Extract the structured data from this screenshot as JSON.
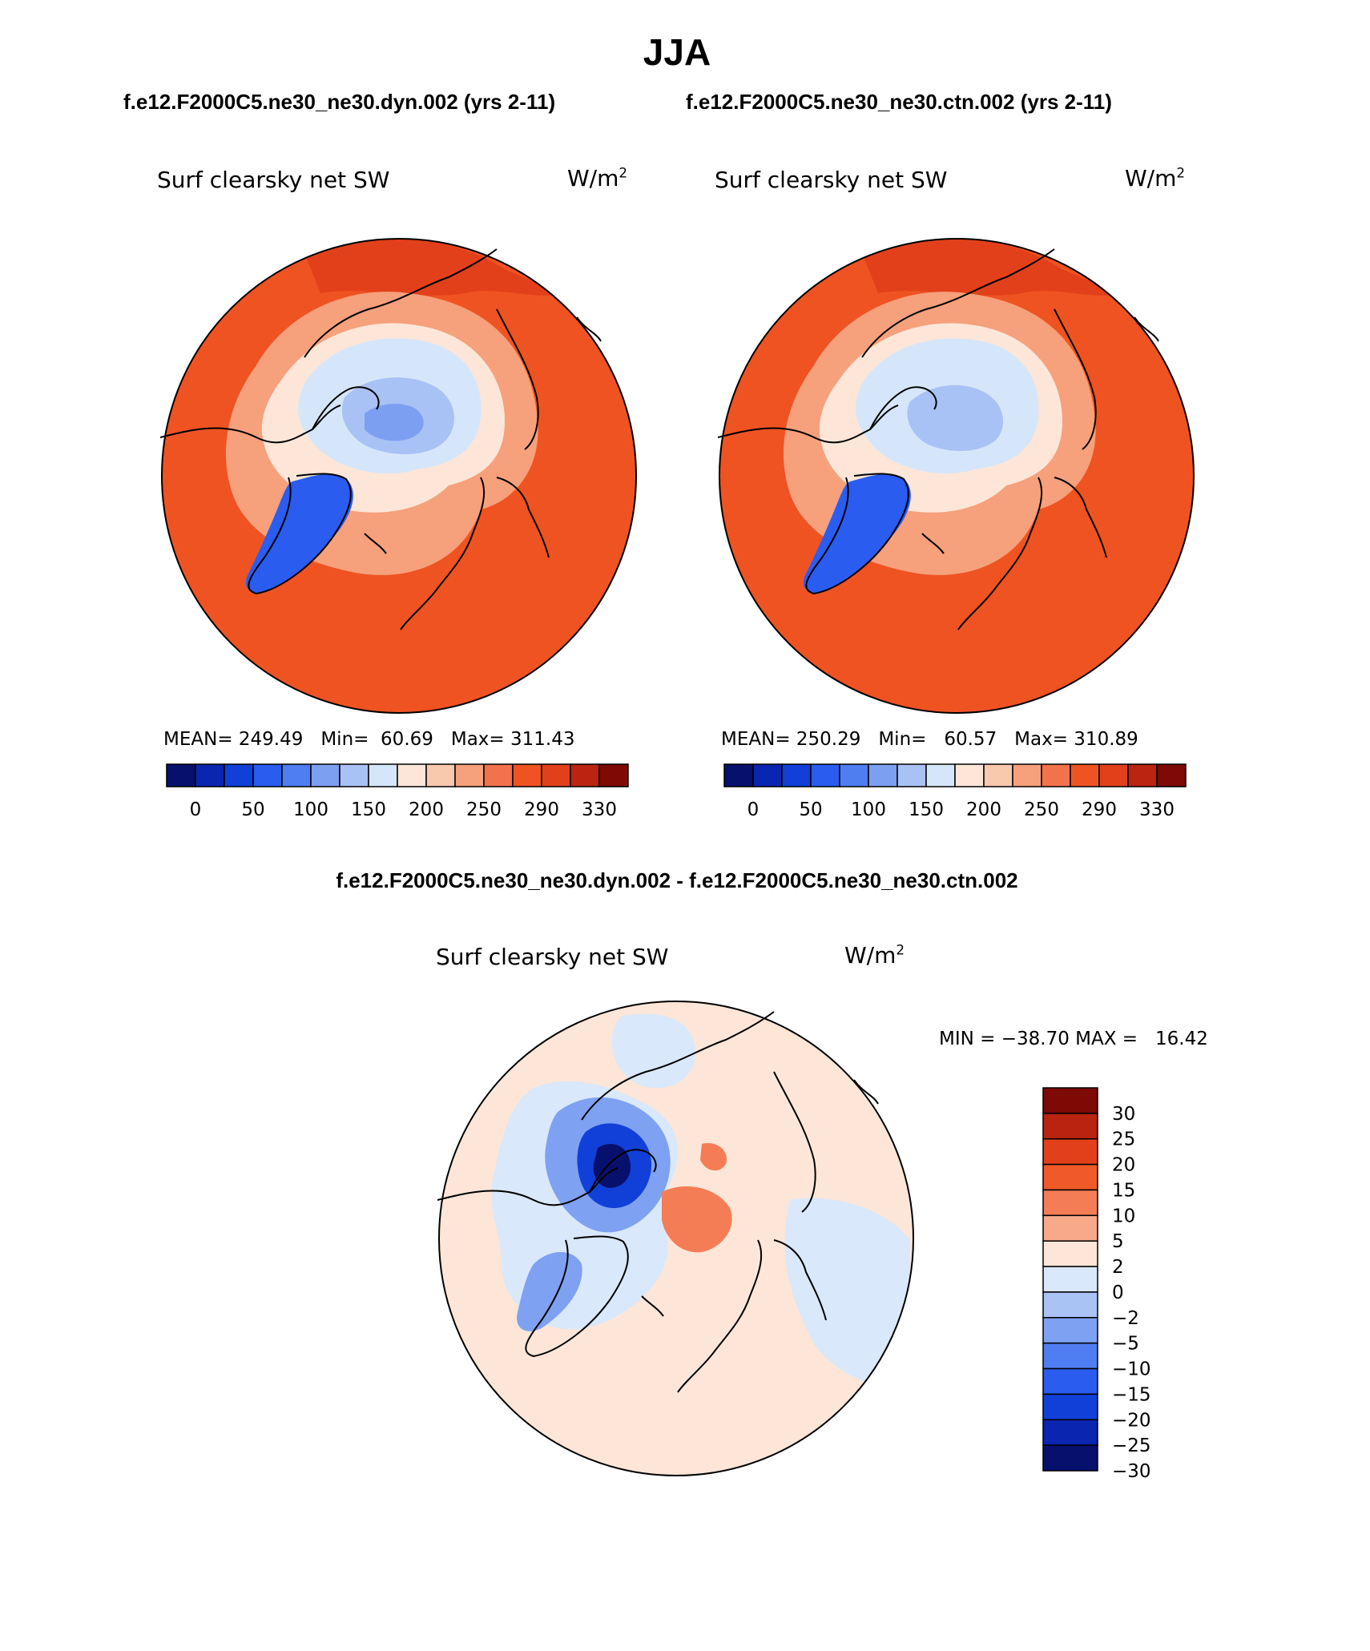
{
  "page_title": "JJA",
  "top_row_titles": {
    "left": "f.e12.F2000C5.ne30_ne30.dyn.002 (yrs 2-11)",
    "right": "f.e12.F2000C5.ne30_ne30.ctn.002 (yrs 2-11)"
  },
  "diff_title": "f.e12.F2000C5.ne30_ne30.dyn.002 - f.e12.F2000C5.ne30_ne30.ctn.002",
  "panels": [
    {
      "variable": "Surf clearsky net SW",
      "units_base": "W/m",
      "units_exp": "2",
      "stats": {
        "mean_label": "MEAN=",
        "mean": "249.49",
        "min_label": "Min=",
        "min": "60.69",
        "max_label": "Max=",
        "max": "311.43"
      }
    },
    {
      "variable": "Surf clearsky net SW",
      "units_base": "W/m",
      "units_exp": "2",
      "stats": {
        "mean_label": "MEAN=",
        "mean": "250.29",
        "min_label": "Min=",
        "min": "60.57",
        "max_label": "Max=",
        "max": "310.89"
      }
    }
  ],
  "diff_panel": {
    "variable": "Surf clearsky net SW",
    "units_base": "W/m",
    "units_exp": "2",
    "stats_text": "MIN = −38.70 MAX =   16.42"
  },
  "abs_colorbar": {
    "colors": [
      "#08106e",
      "#0a25b0",
      "#1040d8",
      "#2a5cf0",
      "#4f7ef2",
      "#7d9ff2",
      "#a9c2f5",
      "#d6e6fa",
      "#fde6d8",
      "#f9c9ae",
      "#f6a07c",
      "#f2724c",
      "#ef5322",
      "#e2401a",
      "#bb2410",
      "#7d0a05"
    ],
    "tick_labels": [
      "0",
      "50",
      "100",
      "150",
      "200",
      "250",
      "290",
      "330"
    ]
  },
  "diff_colorbar": {
    "colors": [
      "#7d0a05",
      "#b82410",
      "#e2401a",
      "#ef5a28",
      "#f47d55",
      "#f7a989",
      "#fde6d8",
      "#d9e8fa",
      "#aac3f5",
      "#7fa1f2",
      "#4f7ef2",
      "#2a5cf0",
      "#1040d8",
      "#0a25b0",
      "#08106e"
    ],
    "tick_labels": [
      "30",
      "25",
      "20",
      "15",
      "10",
      "5",
      "2",
      "0",
      "−2",
      "−5",
      "−10",
      "−15",
      "−20",
      "−25",
      "−30"
    ]
  },
  "map_colors": {
    "abs_outer": "#ef5322",
    "abs_outer_dark": "#e2401a",
    "abs_mid": "#f6a07c",
    "abs_light": "#fde6d8",
    "abs_ice1": "#d6e6fa",
    "abs_ice2": "#a9c2f5",
    "abs_ice3": "#7d9ff2",
    "abs_greenland": "#2a5cf0",
    "diff_bg": "#fde6d8",
    "diff_blue_light": "#d9e8fa",
    "diff_blue_mid": "#7fa1f2",
    "diff_blue_dark": "#1040d8",
    "diff_blue_core": "#08106e",
    "diff_red": "#f47d55"
  }
}
